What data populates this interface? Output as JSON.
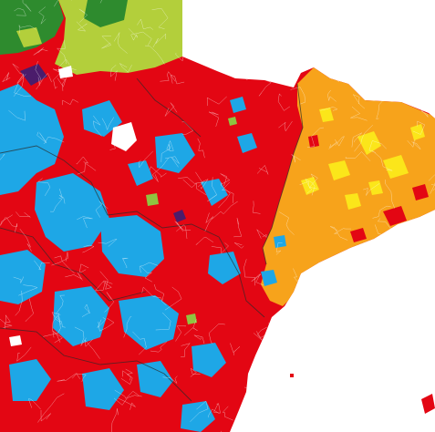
{
  "map": {
    "kind": "electoral-results-by-municipality",
    "legend_visible": false,
    "labels_visible": false,
    "parties_by_color": [
      {
        "color": "#e30613",
        "role": "dominant-red"
      },
      {
        "color": "#1ea7e6",
        "role": "light-blue"
      },
      {
        "color": "#f7a31b",
        "role": "orange-east"
      },
      {
        "color": "#fbe61a",
        "role": "yellow-east"
      },
      {
        "color": "#2e8b2e",
        "role": "dark-green-north"
      },
      {
        "color": "#b3cf3b",
        "role": "lime-north"
      },
      {
        "color": "#4b1c6b",
        "role": "purple"
      },
      {
        "color": "#ffffff",
        "role": "no-data"
      }
    ],
    "water_color": "#ffffff",
    "border_color": "#ffffff",
    "province_border_color": "#2a2a2a"
  }
}
